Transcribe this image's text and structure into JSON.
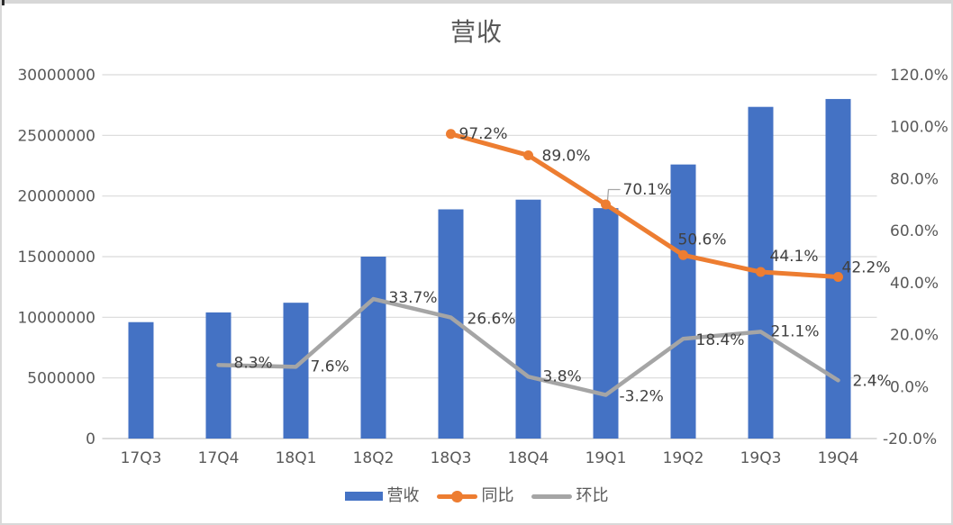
{
  "chart_data": {
    "type": "bar",
    "combo": "bar+line",
    "title": "营收",
    "categories": [
      "17Q3",
      "17Q4",
      "18Q1",
      "18Q2",
      "18Q3",
      "18Q4",
      "19Q1",
      "19Q2",
      "19Q3",
      "19Q4"
    ],
    "series": [
      {
        "id": "revenue",
        "name": "营收",
        "type": "bar",
        "axis": "left",
        "color": "#4472C4",
        "values": [
          9600000,
          10400000,
          11200000,
          15000000,
          18900000,
          19700000,
          19000000,
          22600000,
          27350000,
          28000000
        ]
      },
      {
        "id": "yoy",
        "name": "同比",
        "type": "line",
        "axis": "right",
        "color": "#ED7D31",
        "markers": true,
        "values": [
          null,
          null,
          null,
          null,
          97.2,
          89.0,
          70.1,
          50.6,
          44.1,
          42.2
        ],
        "labels": [
          null,
          null,
          null,
          null,
          "97.2%",
          "89.0%",
          "70.1%",
          "50.6%",
          "44.1%",
          "42.2%"
        ],
        "label_offsets": [
          null,
          null,
          null,
          null,
          [
            9,
            -1
          ],
          [
            15,
            0
          ],
          [
            19,
            -17
          ],
          [
            -6,
            -18
          ],
          [
            10,
            -18
          ],
          [
            4,
            -11
          ]
        ],
        "callout_index": 6
      },
      {
        "id": "qoq",
        "name": "环比",
        "type": "line",
        "axis": "right",
        "color": "#A5A5A5",
        "markers": false,
        "values": [
          null,
          8.3,
          7.6,
          33.7,
          26.6,
          3.8,
          -3.2,
          18.4,
          21.1,
          2.4
        ],
        "labels": [
          null,
          "8.3%",
          "7.6%",
          "33.7%",
          "26.6%",
          "3.8%",
          "-3.2%",
          "18.4%",
          "21.1%",
          "2.4%"
        ],
        "label_offsets": [
          null,
          [
            17,
            -3
          ],
          [
            16,
            -1
          ],
          [
            17,
            -2
          ],
          [
            18,
            1
          ],
          [
            16,
            -1
          ],
          [
            15,
            1
          ],
          [
            14,
            1
          ],
          [
            11,
            -1
          ],
          [
            16,
            0
          ]
        ]
      }
    ],
    "left_axis": {
      "min": 0,
      "max": 30000000,
      "step": 5000000,
      "tick_labels": [
        "30000000",
        "25000000",
        "20000000",
        "15000000",
        "10000000",
        "5000000",
        "0"
      ]
    },
    "right_axis": {
      "min": -20,
      "max": 120,
      "step": 20,
      "tick_labels": [
        "120.0%",
        "100.0%",
        "80.0%",
        "60.0%",
        "40.0%",
        "20.0%",
        "0.0%",
        "-20.0%"
      ]
    },
    "grid": "horizontal-left-axis",
    "legend_position": "bottom",
    "colors": {
      "grid": "#d9d9d9",
      "baseline": "#c8c8c8",
      "axis_text": "#595959",
      "label_text": "#404040",
      "callout": "#a6a6a6"
    }
  }
}
